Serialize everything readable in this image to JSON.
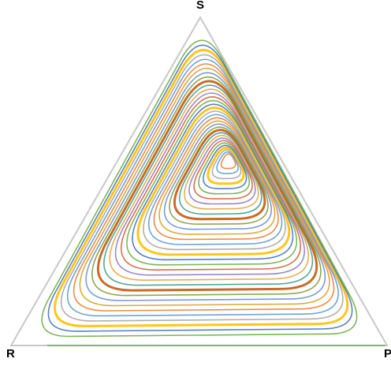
{
  "vertices": {
    "top": "S",
    "left": "R",
    "right": "P"
  },
  "colors": {
    "triangle_edge": "#c8c8c8",
    "baseline_trace": "#70ad47",
    "palette": [
      "#ed7d31",
      "#5b9bd5",
      "#a5a5a5",
      "#ffc000",
      "#4472c4",
      "#70ad47",
      "#d65f35",
      "#8e7cc3",
      "#e8a33d",
      "#3b9e8f",
      "#c55a11",
      "#7f9f3a",
      "#6a8fd8",
      "#d9a026"
    ]
  }
}
